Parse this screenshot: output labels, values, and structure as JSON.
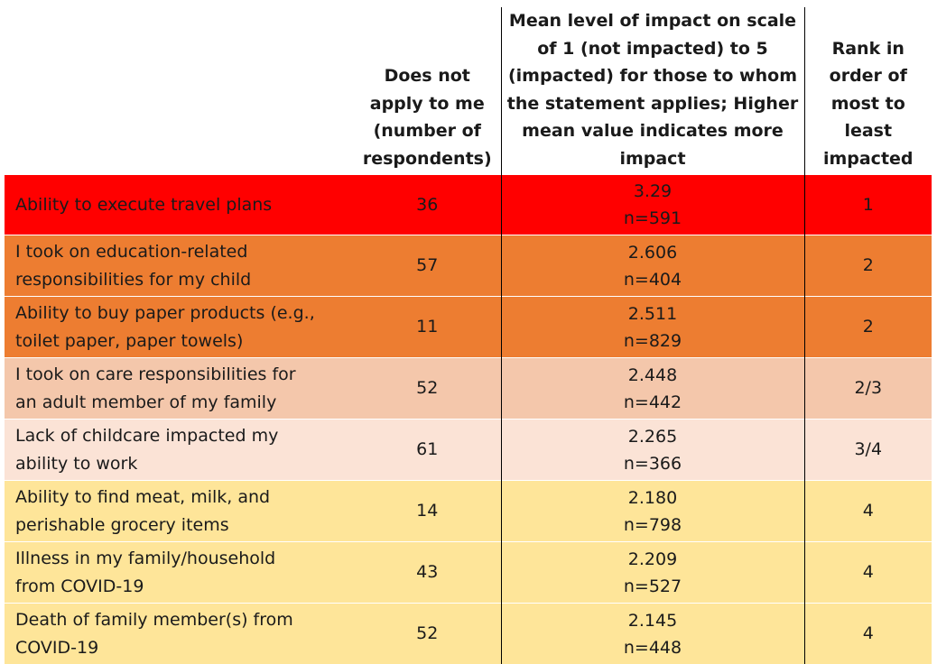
{
  "table": {
    "headers": {
      "statement": "",
      "does_not_apply_lines": [
        "Does not",
        "apply to me",
        "(number of",
        "respondents)"
      ],
      "mean_lines": [
        "Mean level of impact on scale",
        "of 1 (not impacted) to 5",
        "(impacted) for those to whom",
        "the statement applies; Higher",
        "mean value indicates more",
        "impact"
      ],
      "rank_lines": [
        "Rank in",
        "order of",
        "most to",
        "least",
        "impacted"
      ]
    },
    "rows": [
      {
        "statement_lines": [
          "Ability to execute travel plans"
        ],
        "does_not_apply": "36",
        "mean": "3.29",
        "n": "n=591",
        "rank": "1",
        "color": "#ff0000"
      },
      {
        "statement_lines": [
          "I took on education-related",
          "responsibilities for my child"
        ],
        "does_not_apply": "57",
        "mean": "2.606",
        "n": "n=404",
        "rank": "2",
        "color": "#ed7d31"
      },
      {
        "statement_lines": [
          "Ability to buy paper products (e.g.,",
          "toilet paper, paper towels)"
        ],
        "does_not_apply": "11",
        "mean": "2.511",
        "n": "n=829",
        "rank": "2",
        "color": "#ed7d31"
      },
      {
        "statement_lines": [
          "I took on care responsibilities for",
          "an adult member of my family"
        ],
        "does_not_apply": "52",
        "mean": "2.448",
        "n": "n=442",
        "rank": "2/3",
        "color": "#f4c7ab"
      },
      {
        "statement_lines": [
          "Lack of childcare impacted my",
          "ability to work"
        ],
        "does_not_apply": "61",
        "mean": "2.265",
        "n": "n=366",
        "rank": "3/4",
        "color": "#fbe3d6"
      },
      {
        "statement_lines": [
          "Ability to find meat, milk, and",
          "perishable grocery items"
        ],
        "does_not_apply": "14",
        "mean": "2.180",
        "n": "n=798",
        "rank": "4",
        "color": "#fee599"
      },
      {
        "statement_lines": [
          "Illness in my family/household",
          "from COVID-19"
        ],
        "does_not_apply": "43",
        "mean": "2.209",
        "n": "n=527",
        "rank": "4",
        "color": "#fee599"
      },
      {
        "statement_lines": [
          "Death of family member(s) from",
          "COVID-19"
        ],
        "does_not_apply": "52",
        "mean": "2.145",
        "n": "n=448",
        "rank": "4",
        "color": "#fee599"
      }
    ]
  }
}
